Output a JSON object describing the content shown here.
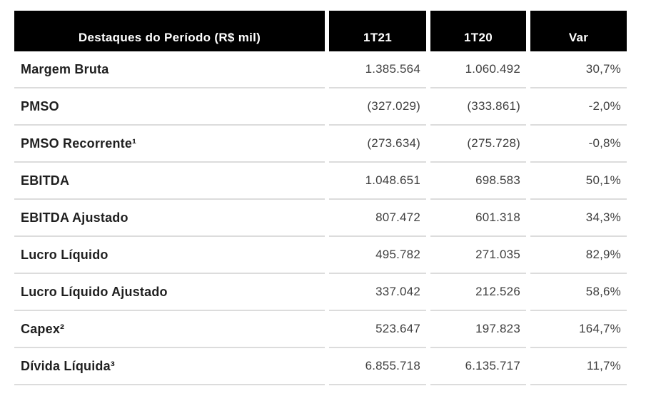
{
  "table": {
    "title_semantics": "Quarterly financial highlights table",
    "header": {
      "label": "Destaques do Período (R$ mil)",
      "col_1t21": "1T21",
      "col_1t20": "1T20",
      "col_var": "Var"
    },
    "rows": [
      {
        "label": "Margem Bruta",
        "v1t21": "1.385.564",
        "v1t20": "1.060.492",
        "var": "30,7%"
      },
      {
        "label": "PMSO",
        "v1t21": "(327.029)",
        "v1t20": "(333.861)",
        "var": "-2,0%"
      },
      {
        "label": "PMSO Recorrente¹",
        "v1t21": "(273.634)",
        "v1t20": "(275.728)",
        "var": "-0,8%"
      },
      {
        "label": "EBITDA",
        "v1t21": "1.048.651",
        "v1t20": "698.583",
        "var": "50,1%"
      },
      {
        "label": "EBITDA Ajustado",
        "v1t21": "807.472",
        "v1t20": "601.318",
        "var": "34,3%"
      },
      {
        "label": "Lucro Líquido",
        "v1t21": "495.782",
        "v1t20": "271.035",
        "var": "82,9%"
      },
      {
        "label": "Lucro Líquido Ajustado",
        "v1t21": "337.042",
        "v1t20": "212.526",
        "var": "58,6%"
      },
      {
        "label": "Capex²",
        "v1t21": "523.647",
        "v1t20": "197.823",
        "var": "164,7%"
      },
      {
        "label": "Dívida Líquida³",
        "v1t21": "6.855.718",
        "v1t20": "6.135.717",
        "var": "11,7%"
      }
    ]
  },
  "colors": {
    "header_bg": "#000000",
    "header_text": "#ffffff",
    "label_text": "#1f1f1f",
    "value_text": "#3f3f3f",
    "divider": "#dcdcdc",
    "page_bg": "#ffffff"
  }
}
